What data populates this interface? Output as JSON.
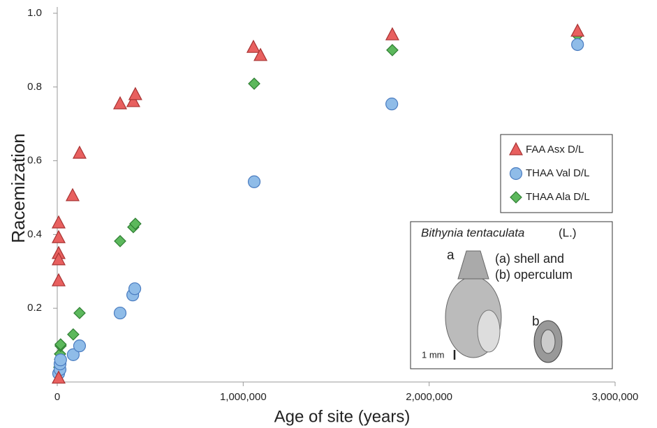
{
  "chart_data": {
    "type": "scatter",
    "xlabel": "Age of site (years)",
    "ylabel": "Racemization",
    "xlim": [
      0,
      3000000
    ],
    "ylim": [
      0,
      1
    ],
    "xticks": [
      0,
      {
        "value": 1000000,
        "label": "1,000,000"
      },
      {
        "value": 2000000,
        "label": "2,000,000"
      },
      {
        "value": 3000000,
        "label": "3,000,000"
      }
    ],
    "yticks": [
      0.2,
      0.4,
      0.6,
      0.8,
      {
        "value": 1,
        "label": "1.0"
      }
    ],
    "legend": "right",
    "series": [
      {
        "name": "FAA Asx D/L",
        "color": "#e8605f",
        "marker": "triangle",
        "x": [
          7500,
          7500,
          7500,
          7500,
          7500,
          7500,
          82600,
          120000,
          338000,
          409000,
          420000,
          1055000,
          1093000,
          1802000,
          2798000
        ],
        "values": [
          0.431,
          0.391,
          0.348,
          0.331,
          0.274,
          0.01,
          0.505,
          0.62,
          0.754,
          0.76,
          0.779,
          0.907,
          0.885,
          0.941,
          0.951
        ]
      },
      {
        "name": "THAA Val D/L",
        "color": "#8fbce8",
        "marker": "circle",
        "x": [
          7500,
          15000,
          15000,
          18000,
          86000,
          120000,
          338000,
          406000,
          417000,
          1059000,
          1799000,
          2798000
        ],
        "values": [
          0.023,
          0.034,
          0.049,
          0.06,
          0.074,
          0.098,
          0.187,
          0.236,
          0.253,
          0.543,
          0.754,
          0.915
        ]
      },
      {
        "name": "THAA Ala D/L",
        "color": "#5cb85c",
        "marker": "diamond",
        "x": [
          11000,
          15000,
          15000,
          18000,
          18000,
          86000,
          120000,
          338000,
          409000,
          420000,
          1059000,
          1802000,
          2798000
        ],
        "values": [
          0.04,
          0.062,
          0.076,
          0.098,
          0.102,
          0.129,
          0.187,
          0.382,
          0.42,
          0.429,
          0.809,
          0.9,
          0.94
        ]
      }
    ]
  },
  "inset": {
    "species": "Bithynia  tentaculata",
    "author": "(L.)",
    "label_a": "a",
    "label_b": "b",
    "caption_1": "(a) shell and",
    "caption_2": "(b) operculum",
    "scale": "1 mm"
  }
}
